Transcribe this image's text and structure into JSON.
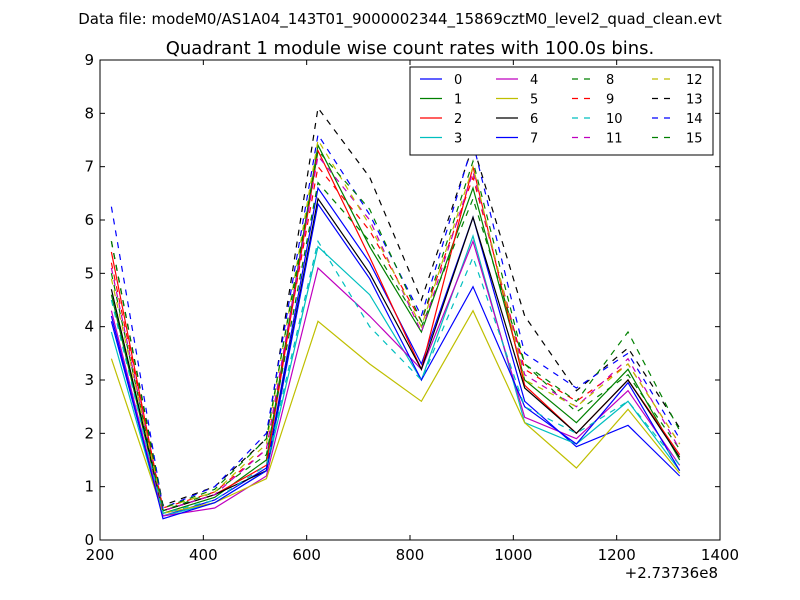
{
  "chart_data": {
    "type": "line",
    "suptitle": "Data file: modeM0/AS1A04_143T01_9000002344_15869cztM0_level2_quad_clean.evt",
    "title": "Quadrant 1 module wise count rates with 100.0s bins.",
    "xlabel": "",
    "ylabel": "",
    "x_offset_label": "+2.73736e8",
    "xlim": [
      200,
      1400
    ],
    "ylim": [
      0,
      9
    ],
    "x_ticks": [
      200,
      400,
      600,
      800,
      1000,
      1200,
      1400
    ],
    "y_ticks": [
      0,
      1,
      2,
      3,
      4,
      5,
      6,
      7,
      8,
      9
    ],
    "grid": false,
    "legend_position": "top-right",
    "legend_columns": 4,
    "x": [
      222,
      322,
      422,
      522,
      622,
      722,
      822,
      922,
      1022,
      1122,
      1222,
      1322
    ],
    "series": [
      {
        "name": "0",
        "color": "#0000ff",
        "dashed": false,
        "values": [
          4.1,
          0.45,
          0.75,
          1.35,
          6.6,
          5.2,
          3.3,
          6.05,
          2.6,
          1.75,
          2.15,
          1.2
        ]
      },
      {
        "name": "1",
        "color": "#008000",
        "dashed": false,
        "values": [
          4.6,
          0.5,
          0.8,
          1.5,
          7.4,
          5.5,
          3.9,
          6.6,
          3.0,
          2.2,
          3.2,
          1.5
        ]
      },
      {
        "name": "2",
        "color": "#ff0000",
        "dashed": false,
        "values": [
          5.4,
          0.55,
          0.85,
          1.4,
          7.3,
          5.3,
          3.2,
          7.0,
          2.9,
          2.0,
          3.0,
          1.6
        ]
      },
      {
        "name": "3",
        "color": "#00bfbf",
        "dashed": false,
        "values": [
          3.9,
          0.45,
          0.7,
          1.3,
          5.5,
          4.6,
          3.0,
          5.7,
          2.2,
          1.8,
          2.6,
          1.3
        ]
      },
      {
        "name": "4",
        "color": "#bf00bf",
        "dashed": false,
        "values": [
          4.3,
          0.45,
          0.6,
          1.2,
          5.1,
          4.2,
          3.2,
          5.6,
          2.3,
          1.9,
          2.8,
          1.4
        ]
      },
      {
        "name": "5",
        "color": "#bfbf00",
        "dashed": false,
        "values": [
          3.4,
          0.5,
          0.7,
          1.15,
          4.1,
          3.3,
          2.6,
          4.3,
          2.2,
          1.35,
          2.45,
          1.25
        ]
      },
      {
        "name": "6",
        "color": "#000000",
        "dashed": false,
        "values": [
          4.7,
          0.55,
          0.85,
          1.3,
          6.4,
          5.0,
          3.2,
          6.05,
          2.85,
          2.0,
          3.0,
          1.55
        ]
      },
      {
        "name": "7",
        "color": "#0000ff",
        "dashed": false,
        "values": [
          4.2,
          0.4,
          0.7,
          1.3,
          6.3,
          4.9,
          3.0,
          4.75,
          2.5,
          1.8,
          2.95,
          1.3
        ]
      },
      {
        "name": "8",
        "color": "#008000",
        "dashed": true,
        "values": [
          5.0,
          0.55,
          0.9,
          1.6,
          6.7,
          5.6,
          4.0,
          6.4,
          3.3,
          2.4,
          3.1,
          1.7
        ]
      },
      {
        "name": "9",
        "color": "#ff0000",
        "dashed": true,
        "values": [
          5.2,
          0.6,
          0.9,
          1.7,
          7.0,
          5.8,
          4.1,
          6.8,
          3.2,
          2.6,
          3.3,
          1.8
        ]
      },
      {
        "name": "10",
        "color": "#00bfbf",
        "dashed": true,
        "values": [
          4.5,
          0.5,
          0.75,
          1.4,
          5.6,
          4.0,
          3.0,
          5.3,
          2.5,
          2.0,
          2.6,
          1.4
        ]
      },
      {
        "name": "11",
        "color": "#bf00bf",
        "dashed": true,
        "values": [
          5.1,
          0.55,
          0.85,
          1.7,
          7.2,
          6.0,
          3.9,
          6.9,
          3.1,
          2.5,
          3.4,
          1.7
        ]
      },
      {
        "name": "12",
        "color": "#bfbf00",
        "dashed": true,
        "values": [
          4.9,
          0.6,
          0.9,
          1.8,
          7.5,
          5.9,
          4.0,
          7.0,
          3.0,
          2.5,
          3.3,
          1.8
        ]
      },
      {
        "name": "13",
        "color": "#000000",
        "dashed": true,
        "values": [
          5.6,
          0.65,
          1.0,
          1.9,
          8.1,
          6.8,
          4.5,
          7.4,
          4.2,
          2.8,
          3.6,
          2.1
        ]
      },
      {
        "name": "14",
        "color": "#0000ff",
        "dashed": true,
        "values": [
          6.25,
          0.6,
          1.0,
          2.0,
          7.6,
          6.1,
          4.2,
          7.45,
          3.5,
          2.85,
          3.5,
          1.9
        ]
      },
      {
        "name": "15",
        "color": "#008000",
        "dashed": true,
        "values": [
          5.6,
          0.6,
          0.95,
          1.9,
          7.3,
          6.2,
          4.1,
          7.1,
          3.3,
          2.6,
          3.9,
          2.05
        ]
      }
    ]
  }
}
